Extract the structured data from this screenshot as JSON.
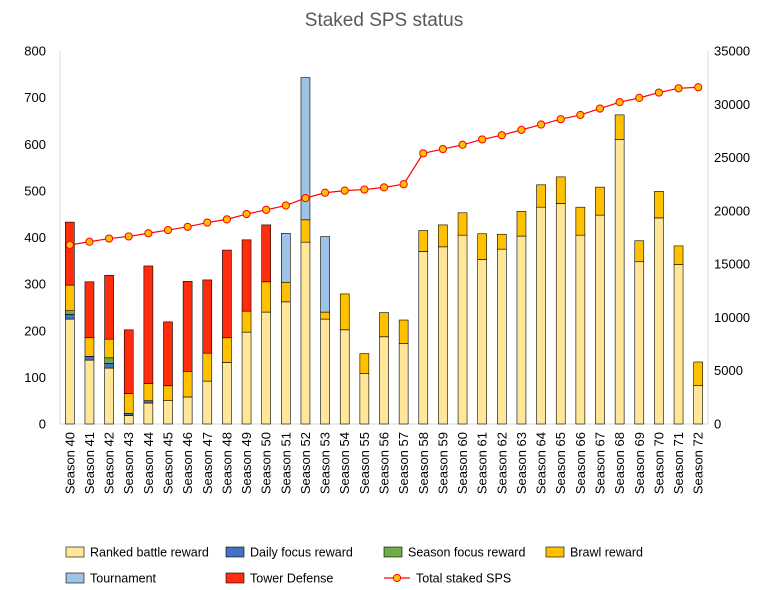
{
  "chart_data": {
    "type": "bar",
    "stacked": true,
    "title": "Staked SPS status",
    "xlabel": "",
    "ylabel": "",
    "ylim": [
      0,
      800
    ],
    "yticks": [
      0,
      100,
      200,
      300,
      400,
      500,
      600,
      700,
      800
    ],
    "y2lim": [
      0,
      35000
    ],
    "y2ticks": [
      0,
      5000,
      10000,
      15000,
      20000,
      25000,
      30000,
      35000
    ],
    "grid": false,
    "legend_position": "bottom",
    "categories": [
      "Season 40",
      "Season 41",
      "Season 42",
      "Season 43",
      "Season 44",
      "Season 45",
      "Season 46",
      "Season 47",
      "Season 48",
      "Season 49",
      "Season 50",
      "Season 51",
      "Season 52",
      "Season 53",
      "Season 54",
      "Season 55",
      "Season 56",
      "Season 57",
      "Season 58",
      "Season 59",
      "Season 60",
      "Season 61",
      "Season 62",
      "Season 63",
      "Season 64",
      "Season 65",
      "Season 66",
      "Season 67",
      "Season 68",
      "Season 69",
      "Season 70",
      "Season 71",
      "Season 72"
    ],
    "series": [
      {
        "name": "Ranked battle reward",
        "color": "#ffe699",
        "axis": "left",
        "values": [
          225,
          137,
          120,
          18,
          45,
          50,
          58,
          92,
          132,
          197,
          240,
          262,
          390,
          225,
          202,
          108,
          187,
          173,
          370,
          380,
          405,
          353,
          375,
          403,
          465,
          473,
          405,
          448,
          610,
          348,
          442,
          342,
          83
        ]
      },
      {
        "name": "Daily focus reward",
        "color": "#4472c4",
        "axis": "left",
        "values": [
          10,
          8,
          10,
          5,
          5,
          0,
          0,
          0,
          0,
          0,
          0,
          0,
          0,
          0,
          0,
          0,
          0,
          0,
          0,
          0,
          0,
          0,
          0,
          0,
          0,
          0,
          0,
          0,
          0,
          0,
          0,
          0,
          0
        ]
      },
      {
        "name": "Season focus reward",
        "color": "#70ad47",
        "axis": "left",
        "values": [
          8,
          0,
          12,
          0,
          0,
          0,
          0,
          0,
          0,
          0,
          0,
          0,
          0,
          0,
          0,
          0,
          0,
          0,
          0,
          0,
          0,
          0,
          0,
          0,
          0,
          0,
          0,
          0,
          0,
          0,
          0,
          0,
          0
        ]
      },
      {
        "name": "Brawl reward",
        "color": "#ffc000",
        "axis": "left",
        "values": [
          55,
          40,
          40,
          42,
          37,
          32,
          55,
          60,
          53,
          45,
          65,
          42,
          48,
          15,
          77,
          43,
          52,
          50,
          45,
          47,
          48,
          55,
          32,
          53,
          48,
          57,
          60,
          60,
          53,
          45,
          57,
          40,
          50
        ]
      },
      {
        "name": "Tournament",
        "color": "#9dc3e6",
        "axis": "left",
        "values": [
          0,
          0,
          0,
          0,
          0,
          0,
          0,
          0,
          0,
          0,
          0,
          105,
          305,
          162,
          0,
          0,
          0,
          0,
          0,
          0,
          0,
          0,
          0,
          0,
          0,
          0,
          0,
          0,
          0,
          0,
          0,
          0,
          0
        ]
      },
      {
        "name": "Tower Defense",
        "color": "#ff2c0e",
        "axis": "left",
        "values": [
          135,
          120,
          137,
          137,
          252,
          137,
          193,
          157,
          188,
          153,
          122,
          0,
          0,
          0,
          0,
          0,
          0,
          0,
          0,
          0,
          0,
          0,
          0,
          0,
          0,
          0,
          0,
          0,
          0,
          0,
          0,
          0,
          0
        ]
      },
      {
        "name": "Total staked SPS",
        "color": "#ff0000",
        "type": "line",
        "axis": "right",
        "values": [
          16800,
          17100,
          17400,
          17600,
          17900,
          18200,
          18500,
          18900,
          19200,
          19700,
          20100,
          20500,
          21200,
          21700,
          21900,
          22000,
          22200,
          22500,
          25400,
          25800,
          26200,
          26700,
          27100,
          27600,
          28100,
          28600,
          29000,
          29600,
          30200,
          30600,
          31100,
          31500,
          31600
        ]
      }
    ]
  }
}
